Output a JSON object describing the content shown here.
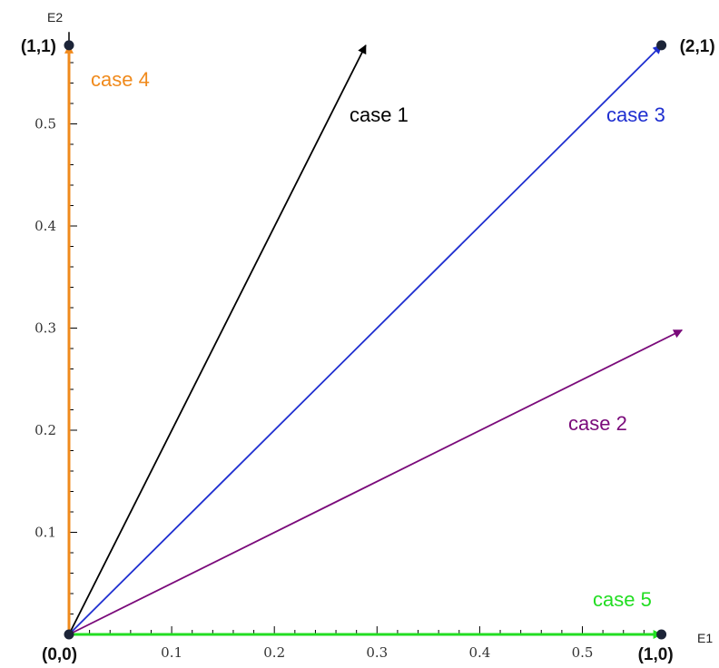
{
  "chart_data": {
    "type": "vector-plot",
    "xlabel": "E1",
    "ylabel": "E2",
    "xlim": [
      0,
      0.58
    ],
    "ylim": [
      0,
      0.59
    ],
    "x_ticks": [
      0.1,
      0.2,
      0.3,
      0.4,
      0.5
    ],
    "y_ticks": [
      0.1,
      0.2,
      0.3,
      0.4,
      0.5
    ],
    "tick_labels_x": [
      "0.1",
      "0.2",
      "0.3",
      "0.4",
      "0.5"
    ],
    "tick_labels_y": [
      "0.1",
      "0.2",
      "0.3",
      "0.4",
      "0.5"
    ],
    "points": [
      {
        "label": "(0,0)",
        "x": 0,
        "y": 0
      },
      {
        "label": "(1,0)",
        "x": 0.577,
        "y": 0
      },
      {
        "label": "(1,1)",
        "x": 0,
        "y": 0.577
      },
      {
        "label": "(2,1)",
        "x": 0.577,
        "y": 0.577
      }
    ],
    "series": [
      {
        "name": "case 1",
        "color": "#000000",
        "from": [
          0,
          0
        ],
        "to": [
          0.289,
          0.577
        ]
      },
      {
        "name": "case 2",
        "color": "#7a0a7a",
        "from": [
          0,
          0
        ],
        "to": [
          0.597,
          0.298
        ]
      },
      {
        "name": "case 3",
        "color": "#1f2fd0",
        "from": [
          0,
          0
        ],
        "to": [
          0.577,
          0.577
        ]
      },
      {
        "name": "case 4",
        "color": "#f08a1c",
        "from": [
          0,
          0
        ],
        "to": [
          0,
          0.577
        ]
      },
      {
        "name": "case 5",
        "color": "#22dd22",
        "from": [
          0,
          0
        ],
        "to": [
          0.577,
          0
        ]
      }
    ],
    "grid": false
  }
}
